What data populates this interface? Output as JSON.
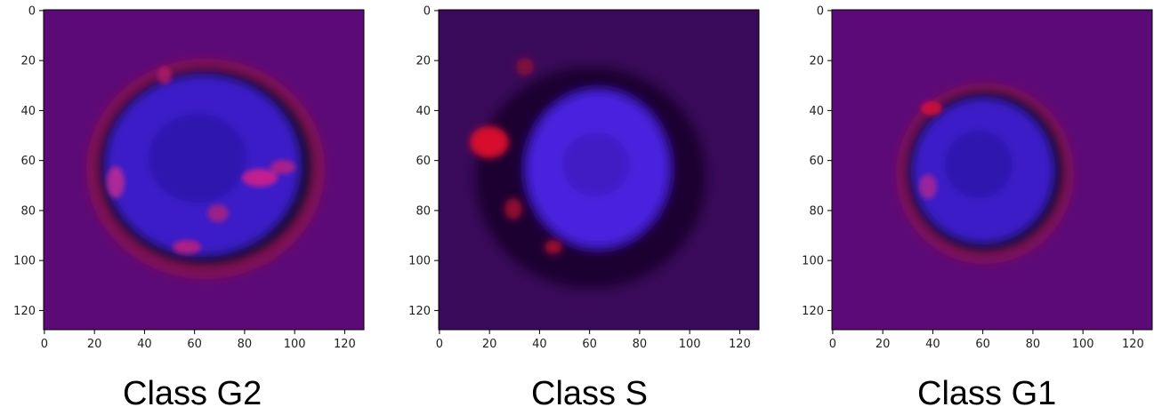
{
  "panels": [
    {
      "id": "g2",
      "caption": "Class G2",
      "background_color": "#5c0a78",
      "cell": {
        "nucleus_color": "#3a1cc8",
        "membrane_color": "#a0103c",
        "features": "large blue nucleus with dark rim, magenta/red spots on right and lower edge"
      }
    },
    {
      "id": "s",
      "caption": "Class S",
      "background_color": "#3a0a5a",
      "cell": {
        "nucleus_color": "#4a22e0",
        "membrane_color": "#1c0630",
        "features": "bright blue nucleus with dark halo, bright red blob on left edge"
      }
    },
    {
      "id": "g1",
      "caption": "Class G1",
      "background_color": "#5c0a78",
      "cell": {
        "nucleus_color": "#3a1cc8",
        "membrane_color": "#a0103c",
        "features": "smaller blue nucleus with dark rim, small red spot upper-left"
      }
    }
  ],
  "axes": {
    "x_ticks": [
      "0",
      "20",
      "40",
      "60",
      "80",
      "100",
      "120"
    ],
    "y_ticks": [
      "0",
      "20",
      "40",
      "60",
      "80",
      "100",
      "120"
    ],
    "xlim": [
      0,
      128
    ],
    "ylim": [
      0,
      128
    ]
  }
}
